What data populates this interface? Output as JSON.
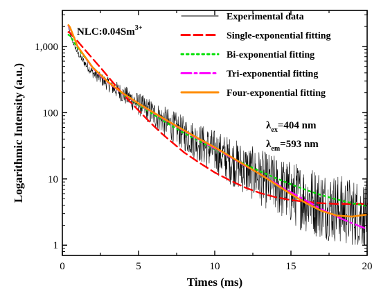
{
  "chart_data": {
    "type": "line",
    "title": "",
    "xlabel": "Times (ms)",
    "ylabel": "Logarithmic Intensity (a.u.)",
    "xlim": [
      0,
      20
    ],
    "ylim": [
      0.7,
      3500
    ],
    "yscale": "log",
    "x_ticks": [
      0,
      5,
      10,
      15,
      20
    ],
    "x_tick_labels": [
      "0",
      "5",
      "10",
      "15",
      "20"
    ],
    "y_ticks": [
      1,
      10,
      100,
      1000
    ],
    "y_tick_labels": [
      "1",
      "10",
      "100",
      "1,000"
    ],
    "legend_placement": "top-right",
    "annotations": {
      "sample": {
        "main": "NLC:0.04Sm",
        "sup": "3+"
      },
      "excitation": {
        "symbol": "λ",
        "sub": "ex",
        "value": "=404 nm"
      },
      "emission": {
        "symbol": "λ",
        "sub": "em",
        "value": "=593 nm"
      }
    },
    "series": [
      {
        "name": "Experimental data",
        "color": "#000000",
        "style": "noisy-thin",
        "x": [
          0.4,
          0.5,
          1,
          1.5,
          2,
          3,
          4,
          5,
          6,
          7,
          8,
          9,
          10,
          11,
          12,
          13,
          14,
          15,
          16,
          17,
          18,
          19,
          20
        ],
        "y": [
          2000,
          1500,
          800,
          550,
          400,
          270,
          190,
          135,
          95,
          67,
          48,
          35,
          26,
          19,
          14,
          10.5,
          8,
          6.2,
          5,
          4.2,
          3.6,
          3.1,
          2.9
        ]
      },
      {
        "name": "Single-exponential fitting",
        "color": "#ff0000",
        "dash": "12,6",
        "x": [
          0.4,
          0.5,
          1,
          1.5,
          2,
          2.5,
          3,
          3.5,
          4,
          4.5,
          5,
          5.5,
          6,
          6.5,
          7,
          8,
          9,
          10,
          11,
          12,
          13,
          14,
          15,
          16,
          17,
          18,
          19,
          20
        ],
        "y": [
          1650,
          1600,
          1200,
          880,
          650,
          480,
          350,
          255,
          190,
          142,
          108,
          82,
          63,
          49,
          39,
          25,
          17.5,
          12.5,
          9.5,
          7.4,
          6.1,
          5.3,
          4.8,
          4.5,
          4.3,
          4.2,
          4.2,
          4.2
        ]
      },
      {
        "name": "Bi-exponential fitting",
        "color": "#00e000",
        "dash": "2.5,5",
        "x": [
          0.4,
          0.5,
          1,
          2,
          3,
          4,
          5,
          6,
          7,
          8,
          9,
          10,
          11,
          12,
          13,
          14,
          15,
          16,
          17,
          18,
          19,
          20
        ],
        "y": [
          1500,
          1450,
          950,
          480,
          290,
          190,
          132,
          93,
          67,
          49,
          37,
          28,
          21.5,
          16.5,
          13,
          10.3,
          8.3,
          6.8,
          5.7,
          4.9,
          4.3,
          3.9
        ]
      },
      {
        "name": "Tri-exponential fitting",
        "color": "#ff00ff",
        "dash": "14,5,3,5",
        "x": [
          0.4,
          0.5,
          1,
          2,
          3,
          4,
          5,
          6,
          7,
          8,
          9,
          10,
          11,
          12,
          13,
          14,
          15,
          16,
          17,
          18,
          19,
          20
        ],
        "y": [
          2050,
          1900,
          1000,
          470,
          285,
          192,
          136,
          98,
          72,
          53,
          39,
          29,
          21.5,
          15.8,
          11.7,
          8.6,
          6.3,
          4.7,
          3.5,
          2.7,
          2.15,
          1.75
        ]
      },
      {
        "name": "Four-exponential fitting",
        "color": "#ff8c00",
        "dash": "",
        "x": [
          0.4,
          0.5,
          1,
          2,
          3,
          4,
          5,
          6,
          7,
          8,
          9,
          10,
          11,
          12,
          13,
          14,
          15,
          16,
          17,
          18,
          19,
          20
        ],
        "y": [
          2100,
          1950,
          1000,
          480,
          290,
          195,
          138,
          100,
          73,
          54,
          40,
          30,
          22,
          16,
          11.7,
          8.3,
          5.9,
          4.3,
          3.3,
          2.8,
          2.7,
          2.9
        ]
      }
    ]
  }
}
